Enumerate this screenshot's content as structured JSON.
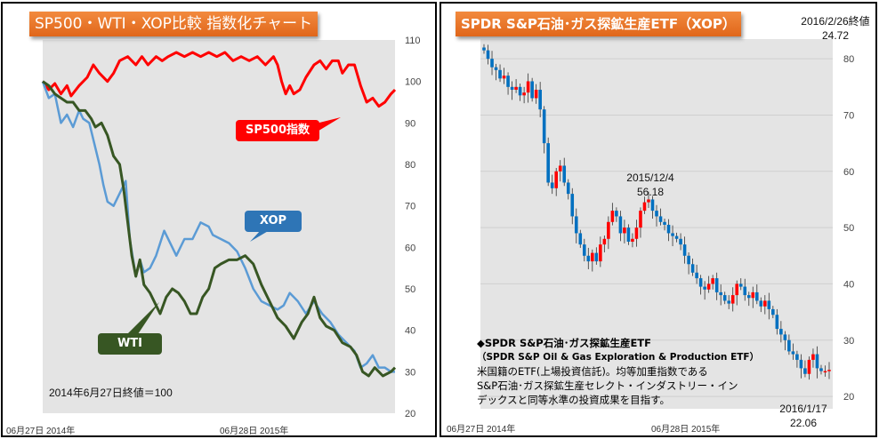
{
  "chart_data": [
    {
      "type": "line",
      "title": "SP500・WTI・XOP比較 指数化チャート",
      "xlabel": "",
      "ylabel": "",
      "ylim": [
        20,
        110
      ],
      "yticks": [
        20,
        30,
        40,
        50,
        60,
        70,
        80,
        90,
        100,
        110
      ],
      "x_unit": "weeks since 2014-06-27",
      "xlim": [
        0,
        87
      ],
      "x_ticks": [
        {
          "x": 0,
          "label": "06月27日 2014年"
        },
        {
          "x": 52,
          "label": "06月28日 2015年"
        }
      ],
      "note": "2014年6月27日終値＝100",
      "series": [
        {
          "name": "SP500指数",
          "label": "SP500指数",
          "color": "#ff0000",
          "points": [
            [
              0,
              100
            ],
            [
              1.5,
              98
            ],
            [
              3,
              99.5
            ],
            [
              4.5,
              97
            ],
            [
              6,
              99
            ],
            [
              7,
              96.5
            ],
            [
              9,
              99
            ],
            [
              11,
              101
            ],
            [
              12.5,
              104
            ],
            [
              14,
              102
            ],
            [
              16,
              100
            ],
            [
              17.5,
              102
            ],
            [
              19,
              105
            ],
            [
              21,
              106
            ],
            [
              23,
              104
            ],
            [
              24.5,
              106
            ],
            [
              26,
              104
            ],
            [
              28,
              106
            ],
            [
              29.5,
              105
            ],
            [
              31,
              106
            ],
            [
              33,
              107
            ],
            [
              35,
              106
            ],
            [
              37,
              107
            ],
            [
              39,
              106
            ],
            [
              41,
              107
            ],
            [
              43,
              106
            ],
            [
              45,
              107
            ],
            [
              47,
              105
            ],
            [
              49,
              106
            ],
            [
              51,
              105
            ],
            [
              53,
              106
            ],
            [
              55,
              104
            ],
            [
              57,
              106
            ],
            [
              58,
              104
            ],
            [
              59,
              100
            ],
            [
              60,
              97
            ],
            [
              61,
              99
            ],
            [
              62,
              97
            ],
            [
              63.5,
              98
            ],
            [
              65,
              101
            ],
            [
              67,
              104
            ],
            [
              68.5,
              105
            ],
            [
              70,
              103
            ],
            [
              71.5,
              105
            ],
            [
              73,
              105
            ],
            [
              74,
              102
            ],
            [
              75.5,
              104
            ],
            [
              77,
              104
            ],
            [
              78.5,
              99
            ],
            [
              80,
              95
            ],
            [
              81.5,
              96
            ],
            [
              83,
              94
            ],
            [
              84.5,
              95
            ],
            [
              86,
              97
            ],
            [
              87,
              98
            ]
          ]
        },
        {
          "name": "XOP",
          "label": "XOP",
          "color": "#5b9bd5",
          "points": [
            [
              0,
              100
            ],
            [
              1.5,
              96
            ],
            [
              3,
              97
            ],
            [
              4.5,
              90
            ],
            [
              6,
              92
            ],
            [
              7.5,
              89
            ],
            [
              9,
              93
            ],
            [
              10,
              91
            ],
            [
              11.5,
              90
            ],
            [
              13,
              84
            ],
            [
              14,
              80
            ],
            [
              15,
              75
            ],
            [
              16,
              71
            ],
            [
              17.5,
              70
            ],
            [
              19,
              73
            ],
            [
              20,
              75
            ],
            [
              20.5,
              76
            ],
            [
              21.5,
              62
            ],
            [
              23,
              53
            ],
            [
              24,
              57
            ],
            [
              25,
              54
            ],
            [
              26.5,
              55
            ],
            [
              28,
              58
            ],
            [
              30,
              64
            ],
            [
              31.5,
              61
            ],
            [
              33,
              58
            ],
            [
              35,
              62
            ],
            [
              37,
              62
            ],
            [
              39,
              66
            ],
            [
              41,
              65
            ],
            [
              42,
              63
            ],
            [
              44,
              62
            ],
            [
              46,
              61
            ],
            [
              48,
              59
            ],
            [
              50,
              55
            ],
            [
              52,
              50
            ],
            [
              54,
              47
            ],
            [
              56,
              46
            ],
            [
              58,
              45
            ],
            [
              59.5,
              46
            ],
            [
              61,
              49
            ],
            [
              63,
              47
            ],
            [
              65,
              44
            ],
            [
              67,
              47
            ],
            [
              69,
              44
            ],
            [
              71,
              42
            ],
            [
              73,
              39
            ],
            [
              75,
              37
            ],
            [
              77,
              35
            ],
            [
              78.5,
              31
            ],
            [
              80,
              32
            ],
            [
              81.5,
              34
            ],
            [
              83,
              31
            ],
            [
              84.5,
              31
            ],
            [
              86,
              30
            ],
            [
              87,
              30
            ]
          ]
        },
        {
          "name": "WTI",
          "label": "WTI",
          "color": "#375623",
          "points": [
            [
              0,
              100
            ],
            [
              1.5,
              99
            ],
            [
              3,
              97
            ],
            [
              4.5,
              96
            ],
            [
              6,
              95
            ],
            [
              7.5,
              95
            ],
            [
              9,
              93
            ],
            [
              10.5,
              93
            ],
            [
              12,
              91
            ],
            [
              13,
              89
            ],
            [
              14.5,
              90
            ],
            [
              16,
              87
            ],
            [
              17.5,
              82
            ],
            [
              19,
              80
            ],
            [
              20,
              74
            ],
            [
              21,
              66
            ],
            [
              22,
              58
            ],
            [
              23,
              53
            ],
            [
              24,
              57
            ],
            [
              25,
              51
            ],
            [
              26.5,
              49
            ],
            [
              28,
              46
            ],
            [
              29,
              44
            ],
            [
              30.5,
              48
            ],
            [
              32,
              50
            ],
            [
              33.5,
              49
            ],
            [
              35,
              47
            ],
            [
              36.5,
              44
            ],
            [
              38,
              44
            ],
            [
              39.5,
              48
            ],
            [
              41,
              50
            ],
            [
              42.5,
              55
            ],
            [
              44,
              56
            ],
            [
              46,
              57
            ],
            [
              48,
              57
            ],
            [
              50,
              58
            ],
            [
              52,
              56
            ],
            [
              54,
              51
            ],
            [
              56,
              47
            ],
            [
              58,
              43
            ],
            [
              60,
              41
            ],
            [
              62,
              38
            ],
            [
              64,
              42
            ],
            [
              65.5,
              44
            ],
            [
              67,
              48
            ],
            [
              68.5,
              43
            ],
            [
              70,
              41
            ],
            [
              72,
              40
            ],
            [
              74,
              37
            ],
            [
              76,
              36
            ],
            [
              77.5,
              34
            ],
            [
              79,
              30
            ],
            [
              80.5,
              29
            ],
            [
              82,
              31
            ],
            [
              84,
              29
            ],
            [
              86,
              30
            ],
            [
              87,
              31
            ]
          ]
        }
      ]
    },
    {
      "type": "candlestick",
      "title": "SPDR S&P石油･ガス探鉱生産ETF（XOP）",
      "ylim": [
        20,
        82
      ],
      "yticks": [
        20,
        30,
        40,
        50,
        60,
        70,
        80
      ],
      "xlim": [
        0,
        87
      ],
      "x_ticks": [
        {
          "x": 0,
          "label": "06月27日 2014年"
        },
        {
          "x": 52,
          "label": "06月28日 2015年"
        }
      ],
      "up_color": "#ff0000",
      "down_color": "#0070c0",
      "closes": [
        81.5,
        80,
        78.5,
        78,
        76.5,
        77,
        75,
        74.5,
        75,
        73.5,
        74,
        76,
        73,
        74.5,
        71,
        65,
        58,
        57,
        60,
        61,
        58,
        56,
        52,
        49,
        47,
        45,
        44,
        45.5,
        44,
        47,
        48,
        51,
        53,
        52,
        49,
        50,
        47.5,
        48,
        50,
        53,
        54.5,
        55,
        53,
        52,
        51,
        50.5,
        49,
        48.5,
        48,
        47,
        45,
        43.5,
        42,
        41,
        39.5,
        39,
        40,
        41,
        38.5,
        38,
        37,
        36.5,
        38,
        40,
        39.5,
        38,
        37.5,
        38.5,
        37,
        36,
        37,
        35.5,
        34.5,
        32,
        31,
        30,
        28,
        27.5,
        26.5,
        25,
        24,
        26.5,
        27.5,
        25,
        24.5,
        24.5,
        24.72
      ]
    }
  ],
  "left": {
    "title": "SP500・WTI・XOP比較  指数化チャート",
    "callouts": {
      "sp500": "SP500指数",
      "xop": "XOP",
      "wti": "WTI"
    },
    "note": "2014年6月27日終値＝100",
    "x_labels": [
      "06月27日 2014年",
      "06月28日 2015年"
    ]
  },
  "right": {
    "title": "SPDR S&P石油･ガス探鉱生産ETF（XOP）",
    "ann_last_date": "2016/2/26終値",
    "ann_last_value": "24.72",
    "ann_peak_date": "2015/12/4",
    "ann_peak_value": "56.18",
    "ann_low_date": "2016/1/17",
    "ann_low_value": "22.06",
    "desc_title": "◆SPDR S&P石油･ガス探鉱生産ETF",
    "desc_sub": "（SPDR S&P Oil & Gas Exploration & Production ETF）",
    "desc_lines": [
      "米国籍のETF(上場投資信託)。均等加重指数である",
      "S&P石油･ガス探鉱生産セレクト・インダストリー・イン",
      "デックスと同等水準の投資成果を目指す。"
    ],
    "x_labels": [
      "06月27日 2014年",
      "06月28日 2015年"
    ]
  }
}
